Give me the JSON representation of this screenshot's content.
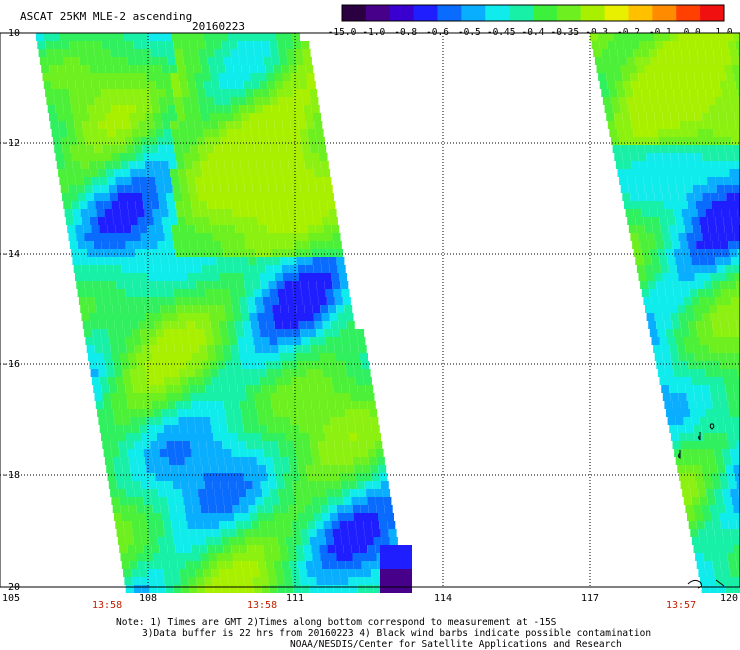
{
  "header": {
    "title": "ASCAT 25KM MLE-2 ascending",
    "date": "20160223"
  },
  "colorbar": {
    "labels": [
      "-15.0",
      "-1.0",
      "-0.8",
      "-0.6",
      "-0.5",
      "-0.45",
      "-0.4",
      "-0.35",
      "-0.3",
      "-0.2",
      "-0.1",
      "0.0",
      "1.0"
    ],
    "colors": [
      "#2a0040",
      "#46008a",
      "#3a00d0",
      "#1e1eff",
      "#0a6cff",
      "#0aaeff",
      "#10ecec",
      "#18f0a8",
      "#3cf03c",
      "#6ef020",
      "#a8f000",
      "#e8f000",
      "#ffc000",
      "#ff8c00",
      "#ff4000",
      "#f01010"
    ]
  },
  "map": {
    "lon_labels": [
      "105",
      "108",
      "111",
      "114",
      "117",
      "120"
    ],
    "lat_labels": [
      "-10",
      "-12",
      "-14",
      "-16",
      "-18",
      "-20"
    ],
    "pass_times": [
      "13:58",
      "13:58",
      "13:57"
    ],
    "contamination_marker": "wind-barb-icon"
  },
  "footnote": {
    "line1": "Note: 1) Times are GMT 2)Times along bottom correspond to measurement at -15S",
    "line2": "3)Data buffer is 22 hrs from 20160223 4) Black wind barbs indicate possible contamination",
    "line3": "NOAA/NESDIS/Center for Satellite Applications and Research"
  }
}
